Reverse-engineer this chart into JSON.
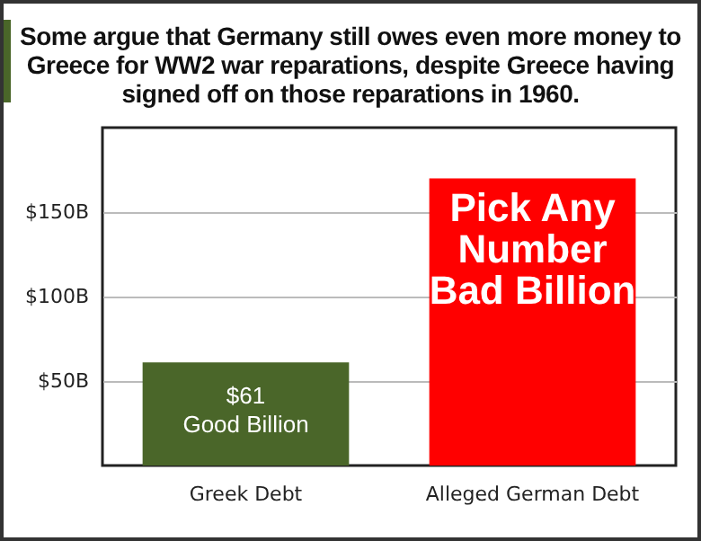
{
  "chart_data": {
    "type": "bar",
    "title": "Some argue that Germany still owes even more money to Greece for WW2 war reparations, despite Greece having signed off on those reparations in 1960.",
    "categories": [
      "Greek Debt",
      "Alleged German Debt"
    ],
    "values": [
      61,
      170
    ],
    "colors": [
      "#4a6629",
      "#ff0000"
    ],
    "ylim": [
      0,
      200
    ],
    "yticks": [
      {
        "value": 50,
        "label": "$50B"
      },
      {
        "value": 100,
        "label": "$100B"
      },
      {
        "value": 150,
        "label": "$150B"
      }
    ],
    "grid": "y",
    "annotations": [
      "$61\nGood Billion",
      "Pick  Any\nNumber\nBad Billion"
    ]
  }
}
